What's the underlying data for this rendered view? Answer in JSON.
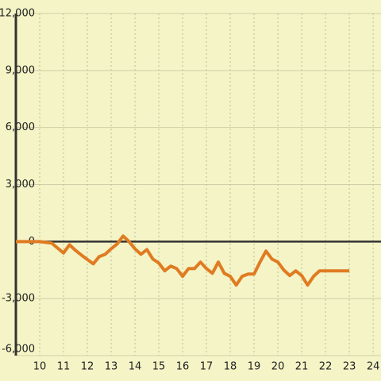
{
  "chart_data": {
    "type": "line",
    "x": [
      9,
      10,
      10.5,
      11,
      11.25,
      11.5,
      11.75,
      12.25,
      12.5,
      12.75,
      13,
      13.25,
      13.5,
      13.75,
      14,
      14.25,
      14.5,
      14.75,
      15,
      15.25,
      15.5,
      15.75,
      16,
      16.25,
      16.5,
      16.75,
      17,
      17.25,
      17.5,
      17.75,
      18,
      18.25,
      18.5,
      18.75,
      19,
      19.25,
      19.5,
      19.75,
      20,
      20.25,
      20.5,
      20.75,
      21,
      21.25,
      21.5,
      21.75,
      22,
      23
    ],
    "series": [
      {
        "color": "#e07b22",
        "values": [
          0,
          0,
          -80,
          -600,
          -170,
          -460,
          -710,
          -1170,
          -790,
          -670,
          -380,
          -130,
          290,
          0,
          -380,
          -670,
          -420,
          -920,
          -1130,
          -1540,
          -1290,
          -1420,
          -1830,
          -1420,
          -1420,
          -1080,
          -1420,
          -1670,
          -1080,
          -1670,
          -1830,
          -2290,
          -1830,
          -1710,
          -1710,
          -1080,
          -500,
          -920,
          -1080,
          -1500,
          -1790,
          -1540,
          -1790,
          -2290,
          -1830,
          -1540,
          -1540,
          -1540
        ]
      }
    ],
    "xlim": [
      9,
      24.33
    ],
    "ylim": [
      -6000,
      12000
    ],
    "xticks": [
      10,
      11,
      12,
      13,
      14,
      15,
      16,
      17,
      18,
      19,
      20,
      21,
      22,
      23,
      24
    ],
    "yticks": [
      {
        "value": -6000,
        "label": "-6,000"
      },
      {
        "value": -3000,
        "label": "-3,000"
      },
      0,
      {
        "value": 3000,
        "label": "3,000"
      },
      {
        "value": 6000,
        "label": "6,000"
      },
      {
        "value": 9000,
        "label": "9,000"
      },
      {
        "value": 12000,
        "label": "12,000"
      }
    ],
    "grid": true
  }
}
